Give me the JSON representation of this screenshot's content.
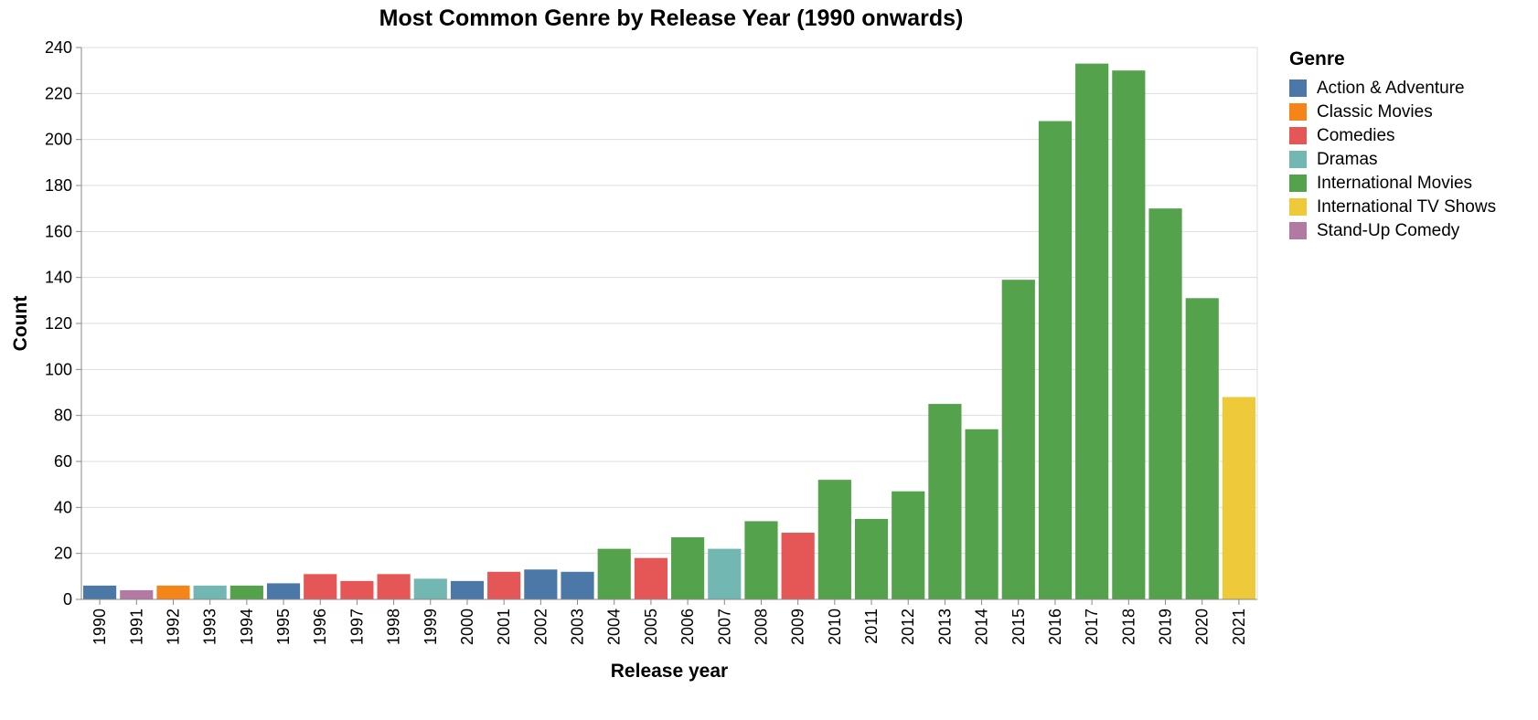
{
  "chart_data": {
    "type": "bar",
    "title": "Most Common Genre by Release Year (1990 onwards)",
    "xlabel": "Release year",
    "ylabel": "Count",
    "ylim": [
      0,
      240
    ],
    "yticks": [
      0,
      20,
      40,
      60,
      80,
      100,
      120,
      140,
      160,
      180,
      200,
      220,
      240
    ],
    "grid": true,
    "legend": {
      "title": "Genre",
      "position": "right",
      "entries": [
        {
          "name": "Action & Adventure",
          "color": "#4c78a8"
        },
        {
          "name": "Classic Movies",
          "color": "#f58518"
        },
        {
          "name": "Comedies",
          "color": "#e45756"
        },
        {
          "name": "Dramas",
          "color": "#72b7b2"
        },
        {
          "name": "International Movies",
          "color": "#54a24b"
        },
        {
          "name": "International TV Shows",
          "color": "#eeca3b"
        },
        {
          "name": "Stand-Up Comedy",
          "color": "#b279a2"
        }
      ]
    },
    "categories": [
      "1990",
      "1991",
      "1992",
      "1993",
      "1994",
      "1995",
      "1996",
      "1997",
      "1998",
      "1999",
      "2000",
      "2001",
      "2002",
      "2003",
      "2004",
      "2005",
      "2006",
      "2007",
      "2008",
      "2009",
      "2010",
      "2011",
      "2012",
      "2013",
      "2014",
      "2015",
      "2016",
      "2017",
      "2018",
      "2019",
      "2020",
      "2021"
    ],
    "values": [
      6,
      4,
      6,
      6,
      6,
      7,
      11,
      8,
      11,
      9,
      8,
      12,
      13,
      12,
      22,
      18,
      27,
      22,
      34,
      29,
      52,
      35,
      47,
      85,
      74,
      139,
      208,
      233,
      230,
      170,
      131,
      88
    ],
    "genres": [
      "Action & Adventure",
      "Stand-Up Comedy",
      "Classic Movies",
      "Dramas",
      "International Movies",
      "Action & Adventure",
      "Comedies",
      "Comedies",
      "Comedies",
      "Dramas",
      "Action & Adventure",
      "Comedies",
      "Action & Adventure",
      "Action & Adventure",
      "International Movies",
      "Comedies",
      "International Movies",
      "Dramas",
      "International Movies",
      "Comedies",
      "International Movies",
      "International Movies",
      "International Movies",
      "International Movies",
      "International Movies",
      "International Movies",
      "International Movies",
      "International Movies",
      "International Movies",
      "International Movies",
      "International Movies",
      "International TV Shows"
    ]
  }
}
